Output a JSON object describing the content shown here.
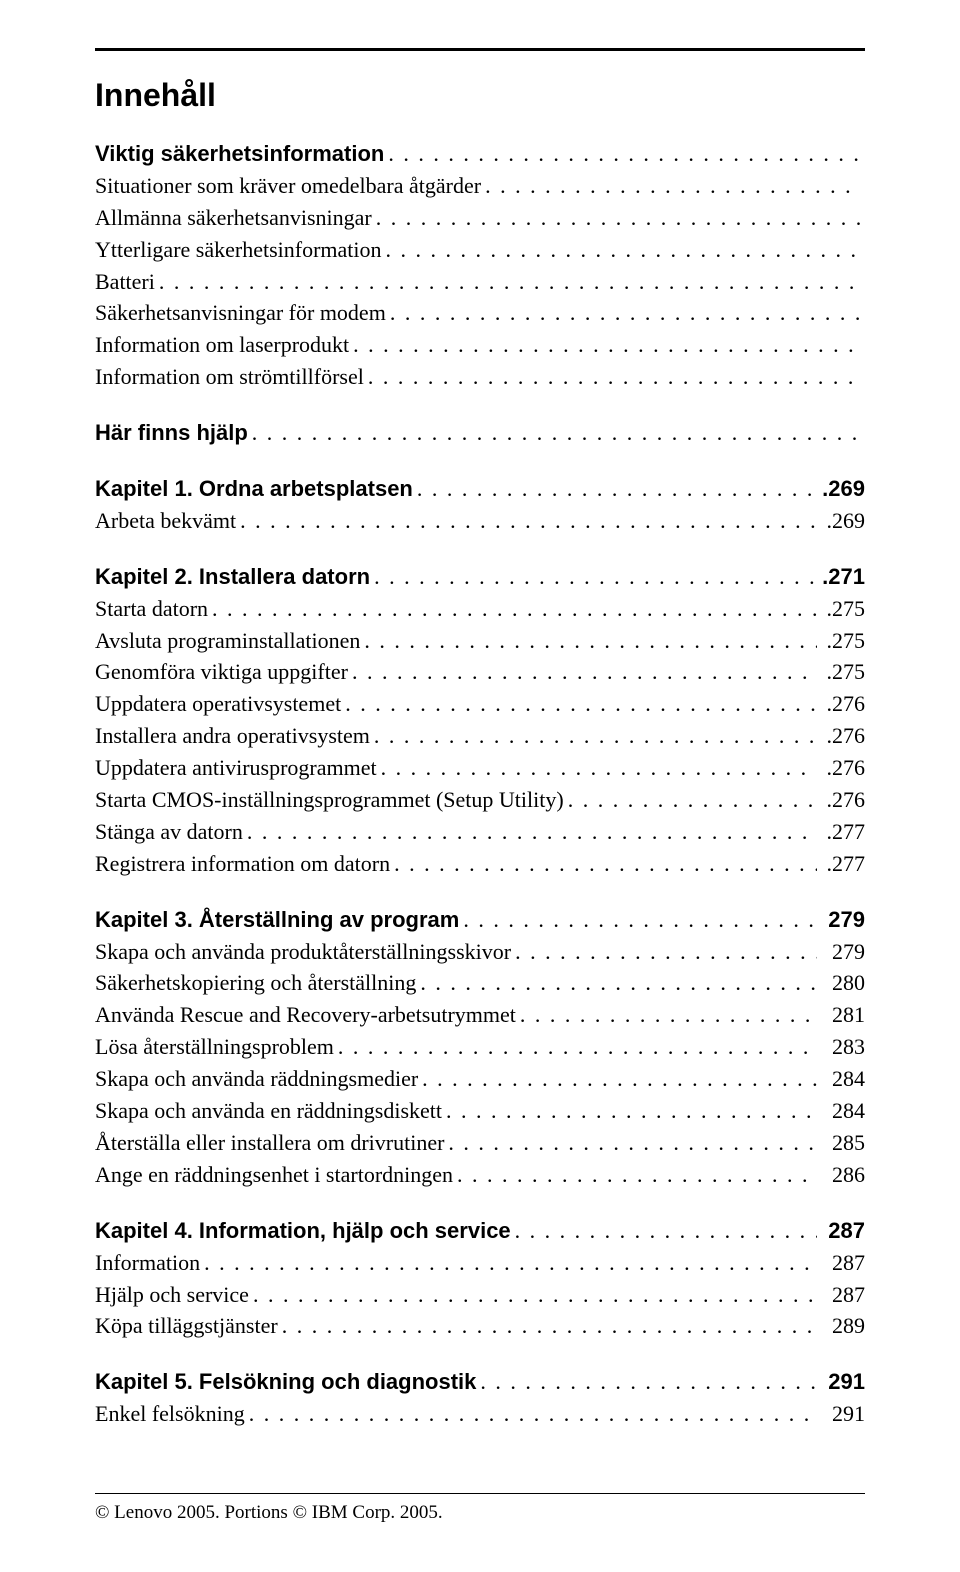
{
  "title": "Innehåll",
  "sections": [
    {
      "heading": {
        "label": "Viktig säkerhetsinformation",
        "page": "",
        "bold": true
      },
      "items": [
        {
          "label": "Situationer som kräver omedelbara åtgärder",
          "page": ""
        },
        {
          "label": "Allmänna säkerhetsanvisningar",
          "page": ""
        },
        {
          "label": "Ytterligare säkerhetsinformation",
          "page": ""
        },
        {
          "label": "Batteri",
          "page": ""
        },
        {
          "label": "Säkerhetsanvisningar för modem",
          "page": ""
        },
        {
          "label": "Information om laserprodukt",
          "page": ""
        },
        {
          "label": "Information om strömtillförsel",
          "page": ""
        }
      ]
    },
    {
      "heading": {
        "label": "Här finns hjälp",
        "page": "",
        "bold": true
      },
      "items": []
    },
    {
      "heading": {
        "label": "Kapitel 1. Ordna arbetsplatsen",
        "page": ".269",
        "bold": true
      },
      "items": [
        {
          "label": "Arbeta bekvämt",
          "page": ".269"
        }
      ]
    },
    {
      "heading": {
        "label": "Kapitel 2. Installera datorn",
        "page": ".271",
        "bold": true
      },
      "items": [
        {
          "label": "Starta datorn",
          "page": ".275"
        },
        {
          "label": "Avsluta programinstallationen",
          "page": ".275"
        },
        {
          "label": "Genomföra viktiga uppgifter",
          "page": ".275"
        },
        {
          "label": "Uppdatera operativsystemet",
          "page": ".276"
        },
        {
          "label": "Installera andra operativsystem",
          "page": ".276"
        },
        {
          "label": "Uppdatera antivirusprogrammet",
          "page": ".276"
        },
        {
          "label": "Starta CMOS-inställningsprogrammet (Setup Utility)",
          "page": ".276"
        },
        {
          "label": "Stänga av datorn",
          "page": ".277"
        },
        {
          "label": "Registrera information om datorn",
          "page": ".277"
        }
      ]
    },
    {
      "heading": {
        "label": "Kapitel 3. Återställning av program",
        "page": " 279",
        "bold": true
      },
      "items": [
        {
          "label": "Skapa och använda produktåterställningsskivor",
          "page": " 279"
        },
        {
          "label": "Säkerhetskopiering och återställning",
          "page": " 280"
        },
        {
          "label": "Använda Rescue and Recovery-arbetsutrymmet",
          "page": " 281"
        },
        {
          "label": "Lösa återställningsproblem",
          "page": " 283"
        },
        {
          "label": "Skapa och använda räddningsmedier",
          "page": " 284"
        },
        {
          "label": "Skapa och använda en räddningsdiskett",
          "page": " 284"
        },
        {
          "label": "Återställa eller installera om drivrutiner",
          "page": " 285"
        },
        {
          "label": "Ange en räddningsenhet i startordningen",
          "page": " 286"
        }
      ]
    },
    {
      "heading": {
        "label": "Kapitel 4. Information, hjälp och service",
        "page": " 287",
        "bold": true
      },
      "items": [
        {
          "label": "Information",
          "page": " 287"
        },
        {
          "label": "Hjälp och service",
          "page": " 287"
        },
        {
          "label": "Köpa tilläggstjänster",
          "page": " 289"
        }
      ]
    },
    {
      "heading": {
        "label": "Kapitel 5. Felsökning och diagnostik",
        "page": " 291",
        "bold": true
      },
      "items": [
        {
          "label": "Enkel felsökning",
          "page": " 291"
        }
      ]
    }
  ],
  "footer": "© Lenovo 2005. Portions © IBM Corp. 2005."
}
